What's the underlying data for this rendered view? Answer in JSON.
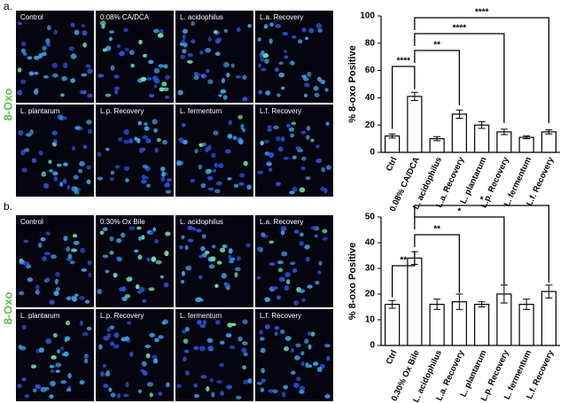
{
  "figure": {
    "labels": [
      "a.",
      "b."
    ],
    "stain": "8-Oxo",
    "panels": [
      [
        "Control",
        "0.08% CA/DCA",
        "L. acidophilus",
        "L.a. Recovery",
        "L. plantarum",
        "L.p. Recovery",
        "L. fermentum",
        "L.f. Recovery"
      ],
      [
        "Control",
        "0.30% Ox Bile",
        "L. acidophilus",
        "L.a. Recovery",
        "L. plantarum",
        "L.p. Recovery",
        "L. fermentum",
        "L.f. Recovery"
      ]
    ]
  },
  "chart_data": [
    {
      "type": "bar",
      "y_label": "% 8-oxo Positive",
      "categories": [
        "Ctrl",
        "0.08% CA/DCA",
        "L. acidophilus",
        "L.a. Recovery",
        "L. plantarum",
        "L.p. Recovery",
        "L. fermentum",
        "L.f. Recovery"
      ],
      "values": [
        12,
        41,
        10,
        28,
        20,
        15,
        11,
        15
      ],
      "errors": [
        1.5,
        3,
        1.5,
        3,
        2.5,
        2,
        1,
        1.5
      ],
      "color": "#ffffff",
      "ylim": [
        0,
        100
      ],
      "yticks": [
        0,
        20,
        40,
        60,
        80,
        100
      ],
      "annotations": [
        "****",
        "**",
        "****",
        "****"
      ]
    },
    {
      "type": "bar",
      "y_label": "% 8-oxo Positive",
      "categories": [
        "Ctrl",
        "0.30% Ox Bile",
        "L. acidophilus",
        "L.a. Recovery",
        "L. plantarum",
        "L.p. Recovery",
        "L. fermentum",
        "L.f. Recovery"
      ],
      "values": [
        16,
        34,
        16,
        17,
        16,
        20,
        16,
        21
      ],
      "errors": [
        1.5,
        2.5,
        2,
        3,
        1,
        3.5,
        2,
        2.5
      ],
      "color": "#ffffff",
      "ylim": [
        0,
        50
      ],
      "yticks": [
        0,
        10,
        20,
        30,
        40,
        50
      ],
      "annotations": [
        "**",
        "**",
        "*",
        "*"
      ]
    }
  ]
}
